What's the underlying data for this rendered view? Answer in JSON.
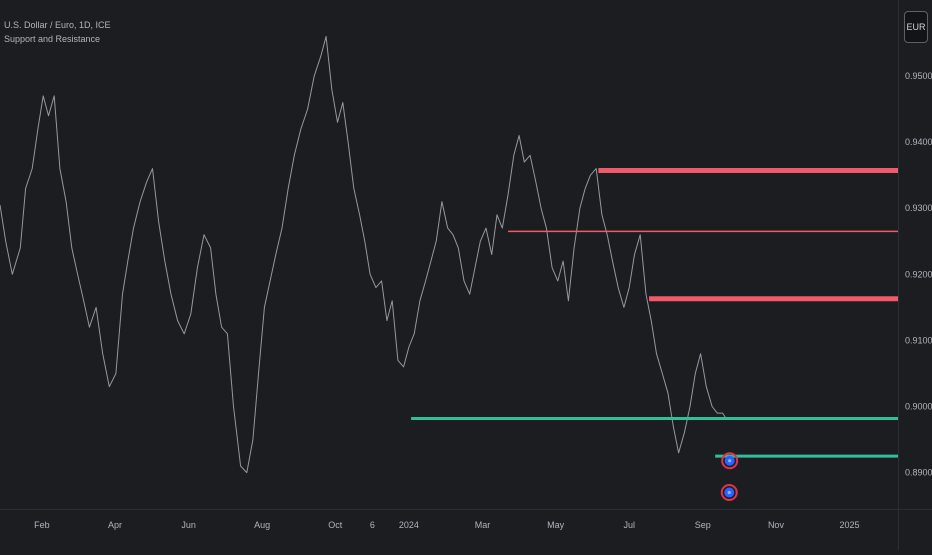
{
  "legend": {
    "symbol": "U.S. Dollar / Euro, 1D, ICE",
    "indicator": "Support and Resistance"
  },
  "currency_button": "EUR",
  "colors": {
    "background": "#1c1d21",
    "price_line": "#9598a1",
    "resistance": "#f05a6a",
    "support": "#2fbf9a",
    "axis_text": "#b2b5be",
    "marker_blue": "#2962ff",
    "marker_red": "#e0334b"
  },
  "chart_data": {
    "type": "line",
    "title": "",
    "xlabel": "",
    "ylabel": "",
    "ylim": [
      0.8845,
      0.9615
    ],
    "xlim": [
      2023.072,
      2025.11
    ],
    "x_ticks": [
      {
        "label": "Feb",
        "t": 2023.167
      },
      {
        "label": "Apr",
        "t": 2023.333
      },
      {
        "label": "Jun",
        "t": 2023.5
      },
      {
        "label": "Aug",
        "t": 2023.667
      },
      {
        "label": "Oct",
        "t": 2023.833
      },
      {
        "label": "6",
        "t": 2023.917
      },
      {
        "label": "2024",
        "t": 2024.0
      },
      {
        "label": "Mar",
        "t": 2024.167
      },
      {
        "label": "May",
        "t": 2024.333
      },
      {
        "label": "Jul",
        "t": 2024.5
      },
      {
        "label": "Sep",
        "t": 2024.667
      },
      {
        "label": "Nov",
        "t": 2024.833
      },
      {
        "label": "2025",
        "t": 2025.0
      }
    ],
    "y_ticks": [
      {
        "label": "0.8900",
        "v": 0.89
      },
      {
        "label": "0.9000",
        "v": 0.9
      },
      {
        "label": "0.9100",
        "v": 0.91
      },
      {
        "label": "0.9200",
        "v": 0.92
      },
      {
        "label": "0.9300",
        "v": 0.93
      },
      {
        "label": "0.9400",
        "v": 0.94
      },
      {
        "label": "0.9500",
        "v": 0.95
      }
    ],
    "series": [
      {
        "x": [
          2023.072,
          2023.085,
          2023.1,
          2023.118,
          2023.13,
          2023.145,
          2023.158,
          2023.17,
          2023.182,
          2023.195,
          2023.208,
          2023.222,
          2023.235,
          2023.248,
          2023.262,
          2023.275,
          2023.29,
          2023.305,
          2023.32,
          2023.335,
          2023.35,
          2023.362,
          2023.375,
          2023.39,
          2023.405,
          2023.418,
          2023.432,
          2023.446,
          2023.46,
          2023.475,
          2023.49,
          2023.505,
          2023.52,
          2023.535,
          2023.55,
          2023.562,
          2023.575,
          2023.588,
          2023.602,
          2023.618,
          2023.632,
          2023.646,
          2023.66,
          2023.672,
          2023.685,
          2023.698,
          2023.712,
          2023.726,
          2023.74,
          2023.755,
          2023.77,
          2023.785,
          2023.8,
          2023.812,
          2023.825,
          2023.838,
          2023.85,
          2023.862,
          2023.875,
          2023.888,
          2023.9,
          2023.912,
          2023.925,
          2023.938,
          2023.95,
          2023.962,
          2023.975,
          2023.988,
          2024.0,
          2024.012,
          2024.025,
          2024.038,
          2024.05,
          2024.062,
          2024.075,
          2024.088,
          2024.1,
          2024.112,
          2024.125,
          2024.138,
          2024.15,
          2024.162,
          2024.175,
          2024.188,
          2024.2,
          2024.212,
          2024.225,
          2024.238,
          2024.25,
          2024.262,
          2024.275,
          2024.288,
          2024.3,
          2024.312,
          2024.325,
          2024.338,
          2024.35,
          2024.362,
          2024.375,
          2024.388,
          2024.4,
          2024.412,
          2024.425,
          2024.438,
          2024.45,
          2024.462,
          2024.475,
          2024.488,
          2024.5,
          2024.512,
          2024.525,
          2024.538,
          2024.55,
          2024.562,
          2024.575,
          2024.588,
          2024.6,
          2024.612,
          2024.625,
          2024.638,
          2024.65,
          2024.662,
          2024.675,
          2024.688,
          2024.7,
          2024.712,
          2024.722
        ],
        "values": [
          0.9305,
          0.925,
          0.92,
          0.924,
          0.933,
          0.936,
          0.942,
          0.947,
          0.944,
          0.947,
          0.936,
          0.931,
          0.924,
          0.92,
          0.916,
          0.912,
          0.915,
          0.908,
          0.903,
          0.905,
          0.917,
          0.922,
          0.927,
          0.931,
          0.934,
          0.936,
          0.928,
          0.922,
          0.917,
          0.913,
          0.911,
          0.914,
          0.921,
          0.926,
          0.924,
          0.917,
          0.912,
          0.911,
          0.9,
          0.891,
          0.89,
          0.895,
          0.906,
          0.915,
          0.919,
          0.923,
          0.927,
          0.933,
          0.938,
          0.942,
          0.945,
          0.95,
          0.953,
          0.956,
          0.948,
          0.943,
          0.946,
          0.94,
          0.933,
          0.929,
          0.925,
          0.92,
          0.918,
          0.919,
          0.913,
          0.916,
          0.907,
          0.906,
          0.909,
          0.911,
          0.916,
          0.919,
          0.922,
          0.925,
          0.931,
          0.927,
          0.926,
          0.924,
          0.919,
          0.917,
          0.921,
          0.925,
          0.927,
          0.923,
          0.929,
          0.927,
          0.932,
          0.938,
          0.941,
          0.937,
          0.938,
          0.934,
          0.93,
          0.927,
          0.921,
          0.919,
          0.922,
          0.916,
          0.924,
          0.93,
          0.933,
          0.935,
          0.936,
          0.929,
          0.926,
          0.922,
          0.918,
          0.915,
          0.918,
          0.923,
          0.926,
          0.917,
          0.913,
          0.908,
          0.905,
          0.902,
          0.897,
          0.893,
          0.896,
          0.9,
          0.905,
          0.908,
          0.903,
          0.9,
          0.899,
          0.899,
          0.898
        ]
      }
    ],
    "levels": [
      {
        "kind": "resistance",
        "value": 0.9357,
        "from_t": 2024.43,
        "weight": "thick"
      },
      {
        "kind": "resistance",
        "value": 0.9265,
        "from_t": 2024.225,
        "weight": "thin"
      },
      {
        "kind": "resistance",
        "value": 0.9163,
        "from_t": 2024.545,
        "weight": "thick"
      },
      {
        "kind": "support",
        "value": 0.8982,
        "from_t": 2024.005,
        "weight": "medium"
      },
      {
        "kind": "support",
        "value": 0.8925,
        "from_t": 2024.695,
        "weight": "medium"
      }
    ],
    "markers": [
      {
        "t": 2024.728,
        "value": 0.8918
      },
      {
        "t": 2024.727,
        "value": 0.887
      }
    ]
  }
}
